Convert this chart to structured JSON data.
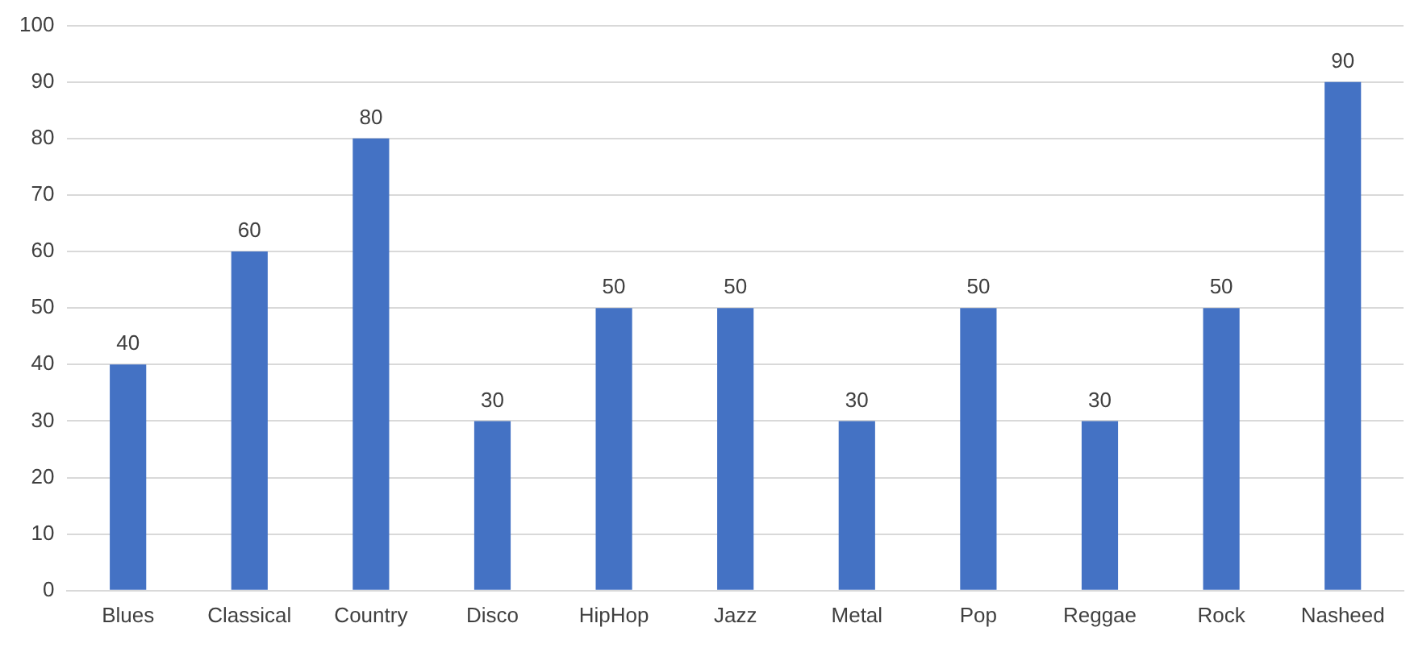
{
  "chart_data": {
    "type": "bar",
    "categories": [
      "Blues",
      "Classical",
      "Country",
      "Disco",
      "HipHop",
      "Jazz",
      "Metal",
      "Pop",
      "Reggae",
      "Rock",
      "Nasheed"
    ],
    "values": [
      40,
      60,
      80,
      30,
      50,
      50,
      30,
      50,
      30,
      50,
      90
    ],
    "color": "#4472c4",
    "ylim": [
      0,
      100
    ],
    "yticks": [
      0,
      10,
      20,
      30,
      40,
      50,
      60,
      70,
      80,
      90,
      100
    ],
    "grid": "y",
    "data_labels": true,
    "legend": false
  }
}
